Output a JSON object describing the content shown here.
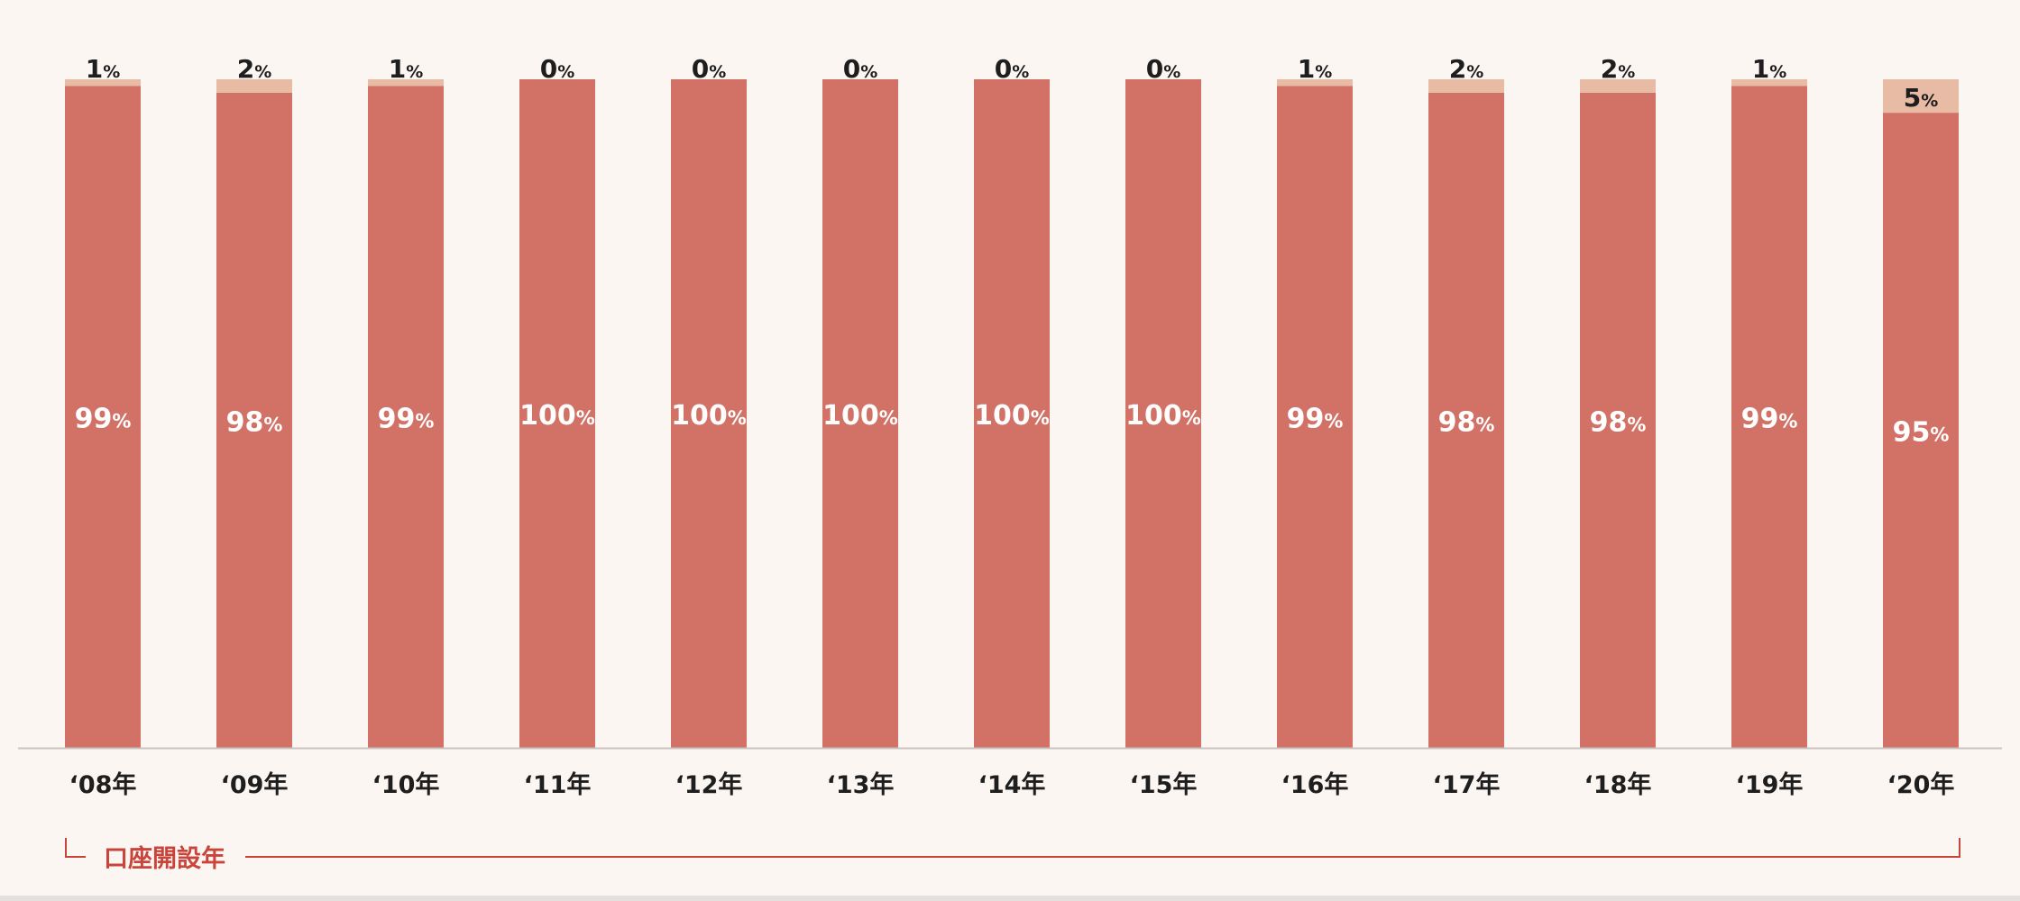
{
  "chart_data": {
    "type": "bar",
    "stacked": true,
    "categories": [
      "‘08年",
      "‘09年",
      "‘10年",
      "‘11年",
      "‘12年",
      "‘13年",
      "‘14年",
      "‘15年",
      "‘16年",
      "‘17年",
      "‘18年",
      "‘19年",
      "‘20年"
    ],
    "series": [
      {
        "values": [
          99,
          98,
          99,
          100,
          100,
          100,
          100,
          100,
          99,
          98,
          98,
          99,
          95
        ],
        "color": "#d27166"
      },
      {
        "values": [
          1,
          2,
          1,
          0,
          0,
          0,
          0,
          0,
          1,
          2,
          2,
          1,
          5
        ],
        "color": "#e8bba5"
      }
    ],
    "value_suffix": "%",
    "ylim": [
      0,
      100
    ],
    "xlabel": "口座開設年",
    "grid": false,
    "legend": "none"
  },
  "colors": {
    "background": "#fcf6f3",
    "axis": "#c8c3c0",
    "bracket": "#c9453b",
    "label_dark": "#1e1e1e",
    "label_light": "#ffffff"
  }
}
